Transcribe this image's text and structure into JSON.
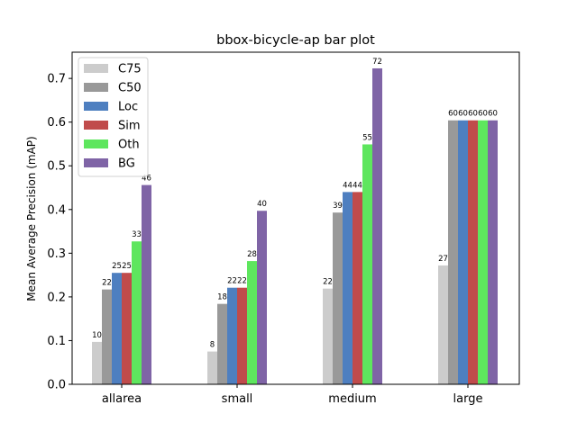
{
  "chart_data": {
    "type": "bar",
    "title": "bbox-bicycle-ap bar plot",
    "xlabel": "",
    "ylabel": "Mean Average Precision (mAP)",
    "categories": [
      "allarea",
      "small",
      "medium",
      "large"
    ],
    "ylim": [
      0,
      0.76
    ],
    "yticks": [
      "0.0",
      "0.1",
      "0.2",
      "0.3",
      "0.4",
      "0.5",
      "0.6",
      "0.7"
    ],
    "grid": false,
    "legend_position": "top-left",
    "series": [
      {
        "name": "C75",
        "color": "#cccccc",
        "values": [
          0.097,
          0.075,
          0.219,
          0.272
        ],
        "labels": [
          "10",
          "8",
          "22",
          "27"
        ]
      },
      {
        "name": "C50",
        "color": "#999999",
        "values": [
          0.217,
          0.184,
          0.393,
          0.604
        ],
        "labels": [
          "22",
          "18",
          "39",
          "60"
        ]
      },
      {
        "name": "Loc",
        "color": "#4e7fc0",
        "values": [
          0.255,
          0.221,
          0.44,
          0.604
        ],
        "labels": [
          "25",
          "22",
          "44",
          "60"
        ]
      },
      {
        "name": "Sim",
        "color": "#c04b4b",
        "values": [
          0.255,
          0.221,
          0.44,
          0.604
        ],
        "labels": [
          "25",
          "22",
          "44",
          "60"
        ]
      },
      {
        "name": "Oth",
        "color": "#5ee65e",
        "values": [
          0.327,
          0.282,
          0.549,
          0.604
        ],
        "labels": [
          "33",
          "28",
          "55",
          "60"
        ]
      },
      {
        "name": "BG",
        "color": "#7f64a6",
        "values": [
          0.456,
          0.397,
          0.723,
          0.604
        ],
        "labels": [
          "46",
          "40",
          "72",
          "60"
        ]
      }
    ]
  }
}
